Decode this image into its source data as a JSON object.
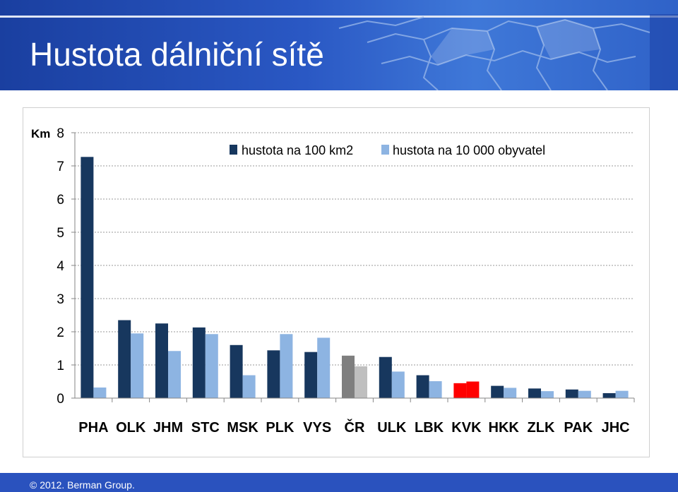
{
  "slide": {
    "title": "Hustota dálniční sítě",
    "footer": "© 2012. Berman Group."
  },
  "colors": {
    "header": "#2a58c4",
    "series1": "#17375e",
    "series2": "#8db4e2",
    "cr_series1": "#7f7f7f",
    "cr_series2": "#bfbfbf",
    "kvk_series": "#ff0000"
  },
  "chart_data": {
    "type": "bar",
    "ylabel": "Km",
    "ylim": [
      0,
      8
    ],
    "yticks": [
      "0",
      "1",
      "2",
      "3",
      "4",
      "5",
      "6",
      "7",
      "8"
    ],
    "grid": true,
    "legend_position": "top-center",
    "categories": [
      "PHA",
      "OLK",
      "JHM",
      "STC",
      "MSK",
      "PLK",
      "VYS",
      "ČR",
      "ULK",
      "LBK",
      "KVK",
      "HKK",
      "ZLK",
      "PAK",
      "JHC"
    ],
    "highlights": {
      "ČR": "grey",
      "KVK": "red"
    },
    "series": [
      {
        "name": "hustota na 100 km2",
        "values": [
          7.27,
          2.35,
          2.25,
          2.13,
          1.6,
          1.44,
          1.39,
          1.28,
          1.24,
          0.69,
          0.45,
          0.37,
          0.29,
          0.26,
          0.15
        ]
      },
      {
        "name": "hustota na 10 000 obyvatel",
        "values": [
          0.32,
          1.95,
          1.42,
          1.93,
          0.69,
          1.93,
          1.82,
          0.96,
          0.8,
          0.51,
          0.5,
          0.31,
          0.21,
          0.22,
          0.22
        ]
      }
    ]
  }
}
